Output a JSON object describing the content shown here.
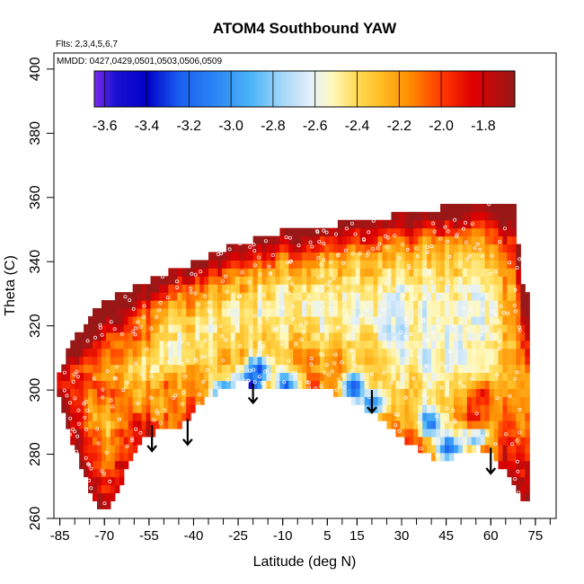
{
  "chart_data": {
    "type": "heatmap",
    "title": "ATOM4 Southbound YAW",
    "flights_note": "Flts: 2,3,4,5,6,7",
    "dates_note": "MMDD: 0427,0429,0501,0503,0506,0509",
    "xlabel": "Latitude (deg N)",
    "ylabel": "Theta (C)",
    "xlim": [
      -87,
      82
    ],
    "ylim": [
      260,
      405
    ],
    "x_ticks": [
      "-85",
      "-70",
      "-55",
      "-40",
      "-25",
      "-10",
      "5",
      "15",
      "30",
      "45",
      "60",
      "75"
    ],
    "x_tick_values": [
      -85,
      -70,
      -55,
      -40,
      -25,
      -10,
      5,
      15,
      30,
      45,
      60,
      75
    ],
    "y_ticks": [
      "260",
      "280",
      "300",
      "320",
      "340",
      "360",
      "380",
      "400"
    ],
    "y_tick_values": [
      260,
      280,
      300,
      320,
      340,
      360,
      380,
      400
    ],
    "colorbar": {
      "labels": [
        "-3.6",
        "-3.4",
        "-3.2",
        "-3.0",
        "-2.8",
        "-2.6",
        "-2.4",
        "-2.2",
        "-2.0",
        "-1.8"
      ],
      "label_values": [
        -3.6,
        -3.4,
        -3.2,
        -3.0,
        -2.8,
        -2.6,
        -2.4,
        -2.2,
        -2.0,
        -1.8
      ],
      "range": [
        -3.65,
        -1.65
      ],
      "stops": [
        {
          "v": -3.65,
          "c": "#7b2cf0"
        },
        {
          "v": -3.55,
          "c": "#1a10d0"
        },
        {
          "v": -3.4,
          "c": "#0000c8"
        },
        {
          "v": -3.25,
          "c": "#1a5cf0"
        },
        {
          "v": -3.05,
          "c": "#2e8cf5"
        },
        {
          "v": -2.9,
          "c": "#4cb6f8"
        },
        {
          "v": -2.75,
          "c": "#a8d8f8"
        },
        {
          "v": -2.62,
          "c": "#e4f0fa"
        },
        {
          "v": -2.52,
          "c": "#fff9c0"
        },
        {
          "v": -2.42,
          "c": "#ffdf60"
        },
        {
          "v": -2.3,
          "c": "#ffc12a"
        },
        {
          "v": -2.15,
          "c": "#ff8c00"
        },
        {
          "v": -2.0,
          "c": "#ff3a00"
        },
        {
          "v": -1.85,
          "c": "#e00000"
        },
        {
          "v": -1.65,
          "c": "#981818"
        }
      ]
    },
    "coverage": {
      "lat": [
        -85,
        -83,
        -80,
        -77,
        -75,
        -73,
        -70,
        -67,
        -65,
        -62,
        -60,
        -57,
        -55,
        -52,
        -50,
        -48,
        -45,
        -42,
        -40,
        -37,
        -35,
        -32,
        -30,
        -27,
        -25,
        -22,
        -20,
        -17,
        -15,
        -12,
        -10,
        -5,
        0,
        5,
        10,
        15,
        20,
        25,
        30,
        35,
        40,
        45,
        50,
        55,
        60,
        65,
        68,
        71
      ],
      "theta_min": [
        297,
        289,
        281,
        275,
        269,
        265,
        263,
        265,
        270,
        276,
        281,
        285,
        286,
        287,
        287,
        288,
        289,
        291,
        294,
        296,
        298,
        299,
        300,
        301,
        302,
        302,
        301,
        300,
        300,
        301,
        301,
        301,
        300,
        300,
        298,
        296,
        293,
        289,
        285,
        282,
        279,
        278,
        280,
        282,
        281,
        274,
        269,
        265
      ],
      "theta_max": [
        306,
        311,
        316,
        320,
        323,
        325,
        327,
        329,
        330,
        331,
        332,
        333,
        334,
        335,
        336,
        337,
        338,
        339,
        340,
        341,
        342,
        343,
        344,
        345,
        346,
        346,
        347,
        348,
        348,
        349,
        350,
        350,
        351,
        351,
        352,
        353,
        354,
        354,
        355,
        356,
        356,
        357,
        357,
        358,
        358,
        359,
        358,
        330
      ]
    },
    "anomalies": [
      {
        "lat": -84,
        "theta": 302,
        "v": -1.8
      },
      {
        "lat": -80,
        "theta": 306,
        "v": -2.0
      },
      {
        "lat": -70,
        "theta": 300,
        "v": -1.9
      },
      {
        "lat": -65,
        "theta": 295,
        "v": -2.1
      },
      {
        "lat": -56,
        "theta": 287,
        "v": -1.75
      },
      {
        "lat": -58,
        "theta": 316,
        "v": -2.05
      },
      {
        "lat": -48,
        "theta": 300,
        "v": -2.1
      },
      {
        "lat": -21,
        "theta": 302,
        "v": -3.55
      },
      {
        "lat": -18,
        "theta": 307,
        "v": -3.15
      },
      {
        "lat": -30,
        "theta": 300,
        "v": -3.0
      },
      {
        "lat": -8,
        "theta": 302,
        "v": -3.1
      },
      {
        "lat": 14,
        "theta": 301,
        "v": -3.15
      },
      {
        "lat": 20,
        "theta": 296,
        "v": -3.2
      },
      {
        "lat": 40,
        "theta": 290,
        "v": -3.1
      },
      {
        "lat": 46,
        "theta": 282,
        "v": -3.25
      },
      {
        "lat": 55,
        "theta": 286,
        "v": -3.3
      },
      {
        "lat": 57,
        "theta": 298,
        "v": -1.85
      },
      {
        "lat": 55,
        "theta": 291,
        "v": -1.9
      },
      {
        "lat": 60,
        "theta": 280,
        "v": -2.0
      },
      {
        "lat": -12,
        "theta": 330,
        "v": -2.45
      },
      {
        "lat": 35,
        "theta": 330,
        "v": -2.5
      },
      {
        "lat": -40,
        "theta": 312,
        "v": -2.4
      }
    ],
    "arrows": [
      {
        "lat": -54,
        "theta_top": 289,
        "theta_bottom": 281
      },
      {
        "lat": -42,
        "theta_top": 291,
        "theta_bottom": 283
      },
      {
        "lat": -20,
        "theta_top": 302,
        "theta_bottom": 296
      },
      {
        "lat": 20,
        "theta_top": 300,
        "theta_bottom": 293
      },
      {
        "lat": 60,
        "theta_top": 282,
        "theta_bottom": 274
      }
    ]
  }
}
